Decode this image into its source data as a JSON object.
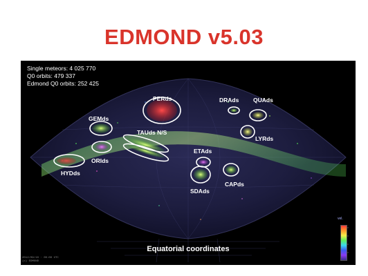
{
  "slide": {
    "title": "EDMOND v5.03"
  },
  "stats": {
    "single_meteors": "Single meteors: 4 025 770",
    "q0_orbits": "Q0 orbits: 479 337",
    "edmond_q0_orbits": "Edmond Q0 orbits: 252 425"
  },
  "map": {
    "projection_label": "Equatorial coordinates",
    "stamp_line_1": "2012/09/10 · 00:00 UTC",
    "stamp_line_2": "(c) EDMOND",
    "colorbar_title": "vel.",
    "shower_color_hint": "#ffffff"
  },
  "showers": {
    "perds": "PERds",
    "drads": "DRAds",
    "quads": "QUAds",
    "gemds": "GEMds",
    "tauds": "TAUds N/S",
    "lyrds": "LYRds",
    "orids": "ORIds",
    "etads": "ETAds",
    "hydds": "HYDds",
    "sdads": "SDAds",
    "capds": "CAPds"
  },
  "colors": {
    "title": "#d9342b",
    "panel_bg": "#000000",
    "ring": "#ffffff"
  }
}
